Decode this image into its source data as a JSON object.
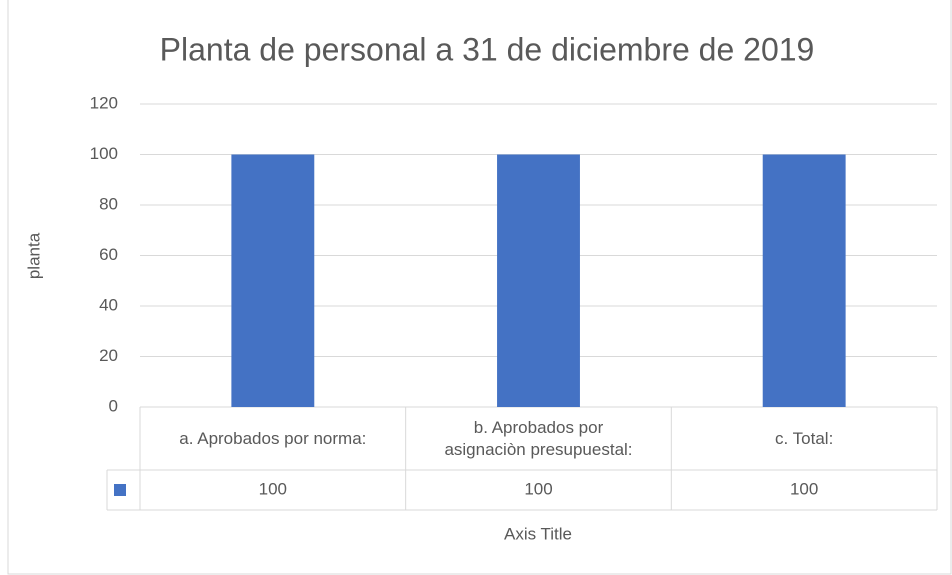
{
  "chart_data": {
    "type": "bar",
    "title": "Planta de personal a 31 de diciembre de 2019",
    "y_label": "planta",
    "x_label": "Axis Title",
    "categories": [
      "a. Aprobados por norma:",
      "b. Aprobados por asignaciòn presupuestal:",
      "c. Total:"
    ],
    "values": [
      100,
      100,
      100
    ],
    "color": "#4472c4",
    "ylim": [
      0,
      120
    ],
    "yticks": [
      0,
      20,
      40,
      60,
      80,
      100,
      120
    ],
    "grid": true,
    "data_table": true
  }
}
